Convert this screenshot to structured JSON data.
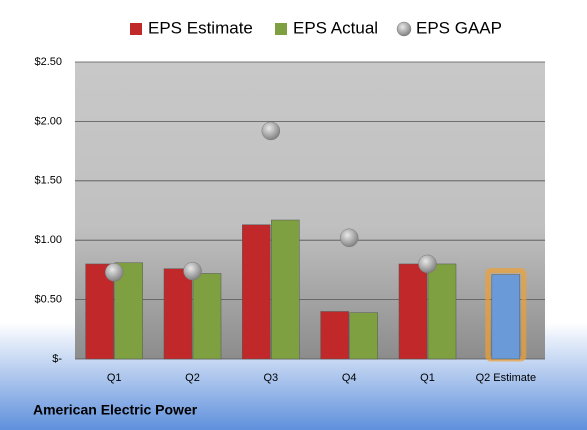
{
  "chart_data": {
    "type": "bar",
    "categories": [
      "Q1",
      "Q2",
      "Q3",
      "Q4",
      "Q1",
      "Q2 Estimate"
    ],
    "series": [
      {
        "name": "EPS Estimate",
        "color": "#c0282a",
        "values": [
          0.8,
          0.76,
          1.13,
          0.4,
          0.8,
          0.71
        ],
        "highlight": {
          "index": 5,
          "color": "#6a9bd8",
          "glow": "#f0a030"
        }
      },
      {
        "name": "EPS Actual",
        "color": "#7fa040",
        "values": [
          0.81,
          0.72,
          1.17,
          0.39,
          0.8,
          null
        ]
      },
      {
        "name": "EPS GAAP",
        "color": "#a0a0a0",
        "marker": "circle",
        "values": [
          0.73,
          0.74,
          1.92,
          1.02,
          0.8,
          null
        ]
      }
    ],
    "ylim": [
      0,
      2.5
    ],
    "yticks": [
      {
        "value": 0,
        "label": "$-"
      },
      {
        "value": 0.5,
        "label": "$0.50"
      },
      {
        "value": 1,
        "label": "$1.00"
      },
      {
        "value": 1.5,
        "label": "$1.50"
      },
      {
        "value": 2,
        "label": "$2.00"
      },
      {
        "value": 2.5,
        "label": "$2.50"
      }
    ],
    "grid": true,
    "legend": "top",
    "caption": "American Electric Power"
  }
}
